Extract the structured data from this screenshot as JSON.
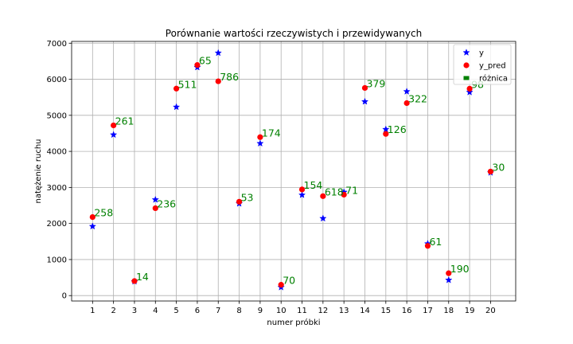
{
  "chart_data": {
    "type": "scatter",
    "title": "Porównanie wartości rzeczywistych i przewidywanych",
    "xlabel": "numer próbki",
    "ylabel": "natężenie ruchu",
    "x": [
      1,
      2,
      3,
      4,
      5,
      6,
      7,
      8,
      9,
      10,
      11,
      12,
      13,
      14,
      15,
      16,
      17,
      18,
      19,
      20
    ],
    "xticks": [
      "1",
      "2",
      "3",
      "4",
      "5",
      "6",
      "7",
      "8",
      "9",
      "10",
      "11",
      "12",
      "13",
      "14",
      "15",
      "16",
      "17",
      "18",
      "19",
      "20"
    ],
    "xlim": [
      0,
      21.2
    ],
    "ylim": [
      -150,
      7050
    ],
    "yticks": [
      0,
      1000,
      2000,
      3000,
      4000,
      5000,
      6000,
      7000
    ],
    "ytick_labels": [
      "0",
      "1000",
      "2000",
      "3000",
      "4000",
      "5000",
      "6000",
      "7000"
    ],
    "grid": true,
    "legend_position": "top-right",
    "series": [
      {
        "name": "y",
        "marker": "star",
        "color": "#0000ff",
        "values": [
          1920,
          4460,
          390,
          2660,
          5230,
          6330,
          6730,
          2550,
          4220,
          230,
          2790,
          2140,
          2870,
          5380,
          4610,
          5660,
          1440,
          430,
          5640,
          3410
        ]
      },
      {
        "name": "y_pred",
        "marker": "circle",
        "color": "#ff0000",
        "values": [
          2178,
          4721,
          404,
          2424,
          5741,
          6395,
          5944,
          2603,
          4394,
          300,
          2944,
          2758,
          2799,
          5759,
          4484,
          5338,
          1379,
          620,
          5738,
          3440
        ]
      },
      {
        "name": "różnica",
        "marker": "square",
        "color": "#008000",
        "labels": [
          "258",
          "261",
          "14",
          "236",
          "511",
          "65",
          "786",
          "53",
          "174",
          "70",
          "154",
          "618",
          "71",
          "379",
          "126",
          "322",
          "61",
          "190",
          "98",
          "30"
        ]
      }
    ]
  }
}
